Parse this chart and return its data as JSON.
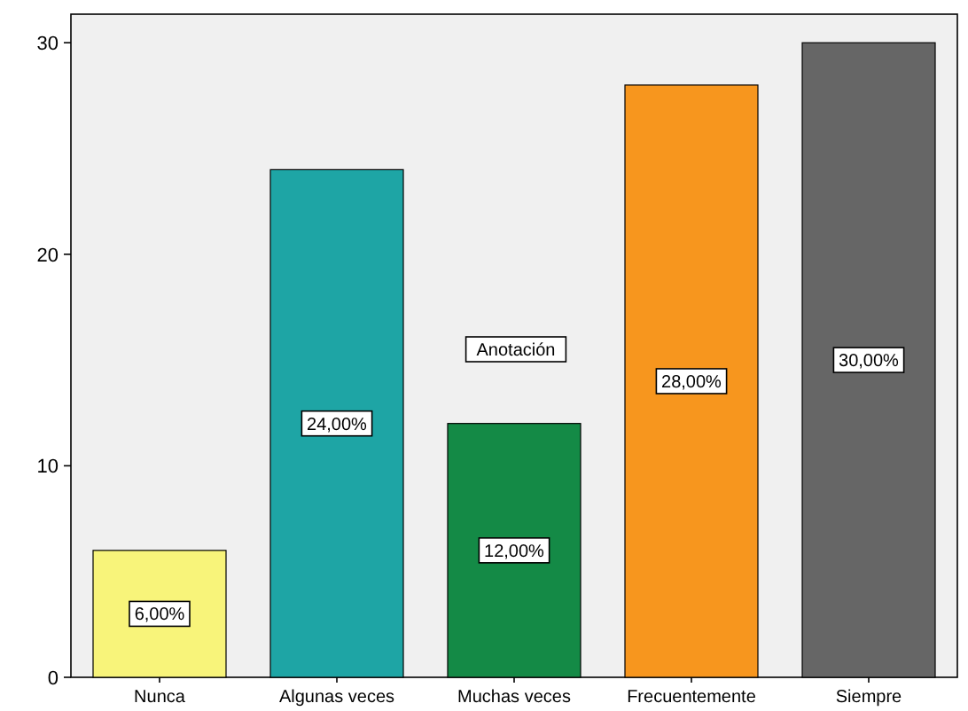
{
  "chart_data": {
    "type": "bar",
    "categories": [
      "Nunca",
      "Algunas veces",
      "Muchas veces",
      "Frecuentemente",
      "Siempre"
    ],
    "values": [
      6,
      24,
      12,
      28,
      30
    ],
    "colors": [
      "#f8f47a",
      "#1ea5a5",
      "#148a46",
      "#f7961e",
      "#666666"
    ],
    "value_labels": [
      "6,00%",
      "24,00%",
      "12,00%",
      "28,00%",
      "30,00%"
    ],
    "ylim": [
      0,
      31.35
    ],
    "yticks": [
      0,
      10,
      20,
      30
    ],
    "annotations": [
      "Anotación"
    ]
  }
}
